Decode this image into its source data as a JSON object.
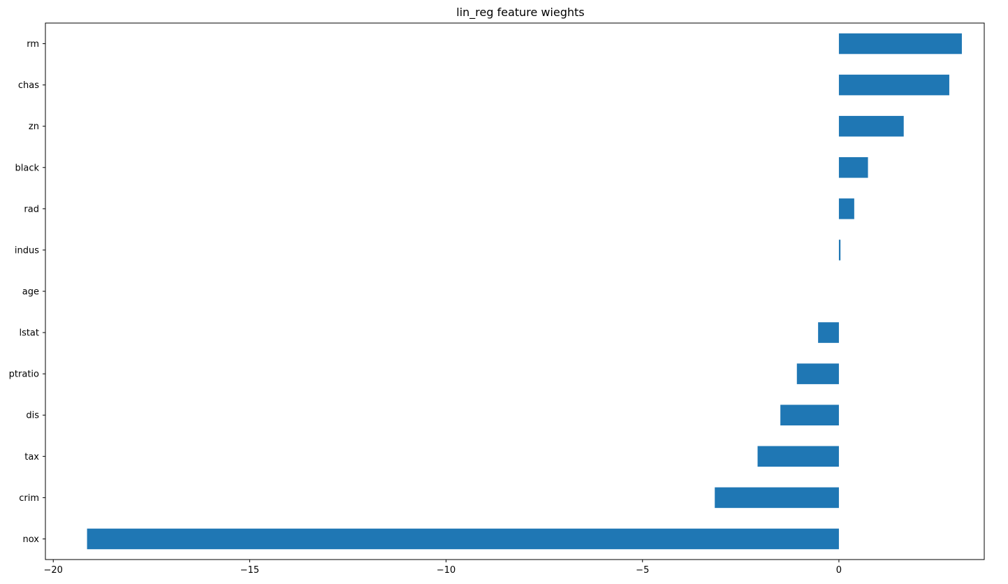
{
  "chart_data": {
    "type": "bar",
    "orientation": "horizontal",
    "title": "lin_reg feature wieghts",
    "xlabel": "",
    "ylabel": "",
    "categories": [
      "rm",
      "chas",
      "zn",
      "black",
      "rad",
      "indus",
      "age",
      "lstat",
      "ptratio",
      "dis",
      "tax",
      "crim",
      "nox"
    ],
    "values": [
      3.13,
      2.81,
      1.65,
      0.74,
      0.39,
      0.04,
      0.0,
      -0.53,
      -1.07,
      -1.49,
      -2.07,
      -3.16,
      -19.14
    ],
    "xlim": [
      -20.2,
      3.7
    ],
    "xticks": [
      -20,
      -15,
      -10,
      -5,
      0
    ],
    "xtick_labels": [
      "−20",
      "−15",
      "−10",
      "−5",
      "0"
    ],
    "bar_color": "#1f77b4",
    "grid": false,
    "legend": "none"
  }
}
